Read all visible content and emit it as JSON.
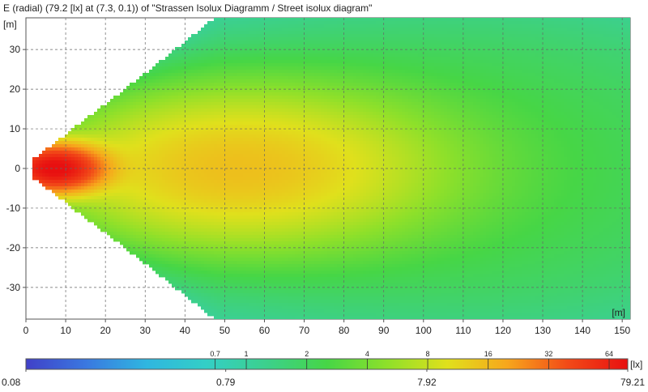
{
  "title": "E (radial) (79.2 [lx] at (7.3, 0.1)) of \"Strassen Isolux Diagramm / Street isolux diagram\"",
  "chart_data": {
    "type": "heatmap",
    "title": "E (radial) (79.2 [lx] at (7.3, 0.1)) of \"Strassen Isolux Diagramm / Street isolux diagram\"",
    "xlabel": "[m]",
    "ylabel": "[m]",
    "xlim": [
      0,
      152
    ],
    "ylim": [
      -38,
      38
    ],
    "x_ticks": [
      0,
      10,
      20,
      30,
      40,
      50,
      60,
      70,
      80,
      90,
      100,
      110,
      120,
      130,
      140,
      150
    ],
    "y_ticks": [
      30,
      20,
      10,
      0,
      -10,
      -20,
      -30
    ],
    "grid": true,
    "peak": {
      "value": 79.2,
      "unit": "lx",
      "x": 7.3,
      "y": 0.1
    },
    "colorbar": {
      "unit": "[lx]",
      "min": 0.08,
      "max": 79.21,
      "scale": "log",
      "tick_values": [
        0.08,
        0.79,
        7.92,
        79.21
      ],
      "tick_labels": [
        "0.08",
        "0.79",
        "7.92",
        "79.21"
      ],
      "iso_values": [
        0.7,
        1,
        2,
        4,
        8,
        16,
        32,
        64
      ],
      "iso_labels": [
        "0.7",
        "1",
        "2",
        "4",
        "8",
        "16",
        "32",
        "64"
      ]
    },
    "colors": [
      "#4040c8",
      "#3a78e0",
      "#2fb6e0",
      "#33cfc6",
      "#3cd08c",
      "#46d646",
      "#8ee02a",
      "#e0e01c",
      "#f7a61c",
      "#f24a18",
      "#e81010"
    ]
  }
}
